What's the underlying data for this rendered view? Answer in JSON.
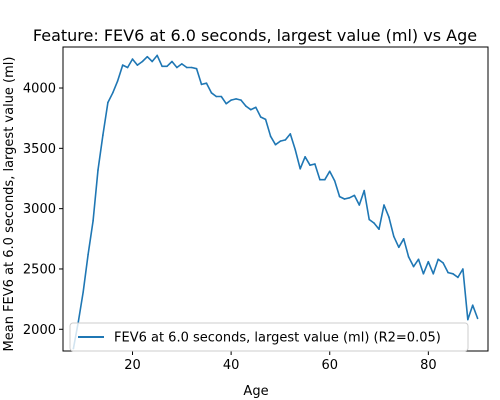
{
  "chart_data": {
    "type": "line",
    "title": "Feature: FEV6 at 6.0 seconds, largest value (ml) vs Age",
    "xlabel": "Age",
    "ylabel": "Mean FEV6 at 6.0 seconds, largest value (ml)",
    "xlim": [
      5.9,
      92.1
    ],
    "ylim": [
      1820,
      4340
    ],
    "xticks": [
      20,
      40,
      60,
      80
    ],
    "yticks": [
      2000,
      2500,
      3000,
      3500,
      4000
    ],
    "grid": false,
    "legend_position": "lower right",
    "series": [
      {
        "name": "FEV6 at 6.0 seconds, largest value (ml) (R2=0.05)",
        "color": "#1f77b4",
        "x": [
          8,
          9,
          10,
          11,
          12,
          13,
          14,
          15,
          16,
          17,
          18,
          19,
          20,
          21,
          22,
          23,
          24,
          25,
          26,
          27,
          28,
          29,
          30,
          31,
          32,
          33,
          34,
          35,
          36,
          37,
          38,
          39,
          40,
          41,
          42,
          43,
          44,
          45,
          46,
          47,
          48,
          49,
          50,
          51,
          52,
          53,
          54,
          55,
          56,
          57,
          58,
          59,
          60,
          61,
          62,
          63,
          64,
          65,
          66,
          67,
          68,
          69,
          70,
          71,
          72,
          73,
          74,
          75,
          76,
          77,
          78,
          79,
          80,
          81,
          82,
          83,
          84,
          85,
          86,
          87,
          88,
          89,
          90
        ],
        "y": [
          1840,
          2060,
          2310,
          2620,
          2900,
          3320,
          3610,
          3880,
          3960,
          4060,
          4190,
          4170,
          4240,
          4190,
          4220,
          4260,
          4220,
          4270,
          4180,
          4180,
          4220,
          4170,
          4200,
          4170,
          4170,
          4160,
          4030,
          4040,
          3960,
          3930,
          3930,
          3870,
          3900,
          3910,
          3900,
          3850,
          3820,
          3840,
          3760,
          3740,
          3600,
          3530,
          3560,
          3570,
          3620,
          3490,
          3330,
          3430,
          3360,
          3370,
          3240,
          3240,
          3310,
          3230,
          3100,
          3080,
          3090,
          3110,
          3030,
          3150,
          2910,
          2880,
          2830,
          3030,
          2930,
          2770,
          2680,
          2750,
          2600,
          2520,
          2580,
          2460,
          2560,
          2460,
          2580,
          2550,
          2470,
          2460,
          2430,
          2500,
          2080,
          2200,
          2090
        ]
      }
    ]
  }
}
